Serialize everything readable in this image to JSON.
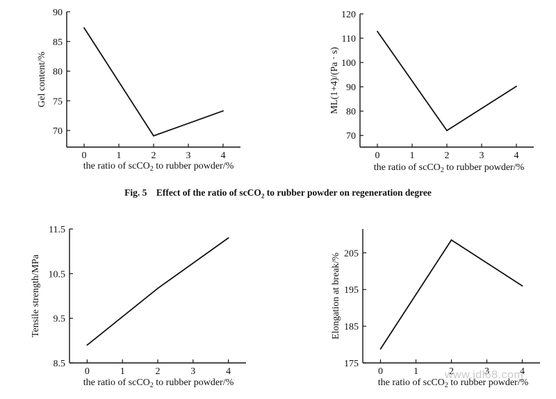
{
  "caption": {
    "prefix": "Fig. 5",
    "text_before_sub": "Effect of the ratio of scCO",
    "sub": "2",
    "text_after_sub": " to rubber powder on regeneration degree"
  },
  "watermark": "www.jdl68.com",
  "chart_data": [
    {
      "type": "line",
      "x": [
        0,
        2,
        4
      ],
      "values": [
        87.3,
        69.1,
        73.3
      ],
      "xticks": [
        "0",
        "1",
        "2",
        "3",
        "4"
      ],
      "yticks": [
        "70",
        "75",
        "80",
        "85",
        "90"
      ],
      "xlim": [
        -0.5,
        4.5
      ],
      "ylim": [
        67.2,
        90
      ],
      "xlabel": {
        "before": "the ratio of scCO",
        "sub": "2",
        "after": " to rubber powder/%"
      },
      "ylabel": "Gel content/%"
    },
    {
      "type": "line",
      "x": [
        0,
        2,
        4
      ],
      "values": [
        112.8,
        72.0,
        90.2
      ],
      "xticks": [
        "0",
        "1",
        "2",
        "3",
        "4"
      ],
      "yticks": [
        "70",
        "80",
        "90",
        "100",
        "110",
        "120"
      ],
      "xlim": [
        -0.5,
        4.5
      ],
      "ylim": [
        65.2,
        120
      ],
      "xlabel": {
        "before": "the ratio of scCO",
        "sub": "2",
        "after": " to rubber powder/%"
      },
      "ylabel": "ML(1+4)/(Pa · s)"
    },
    {
      "type": "line",
      "x": [
        0,
        2,
        4
      ],
      "values": [
        8.9,
        10.17,
        11.3
      ],
      "xticks": [
        "0",
        "1",
        "2",
        "3",
        "4"
      ],
      "yticks": [
        "8.5",
        "9.5",
        "10.5",
        "11.5"
      ],
      "xlim": [
        -0.5,
        4.5
      ],
      "ylim": [
        8.5,
        11.5
      ],
      "xlabel": {
        "before": "the ratio of scCO",
        "sub": "2",
        "after": " to rubber powder/%"
      },
      "ylabel": "Tensile strength/MPa"
    },
    {
      "type": "line",
      "x": [
        0,
        2,
        4
      ],
      "values": [
        178.8,
        208.5,
        196.0
      ],
      "xticks": [
        "0",
        "1",
        "2",
        "3",
        "4"
      ],
      "yticks": [
        "175",
        "185",
        "195",
        "205"
      ],
      "xlim": [
        -0.5,
        4.5
      ],
      "ylim": [
        175,
        211.5
      ],
      "xlabel": {
        "before": "the ratio of scCO",
        "sub": "2",
        "after": " to rubber powder/%"
      },
      "ylabel": "Elongation at break/%"
    }
  ]
}
